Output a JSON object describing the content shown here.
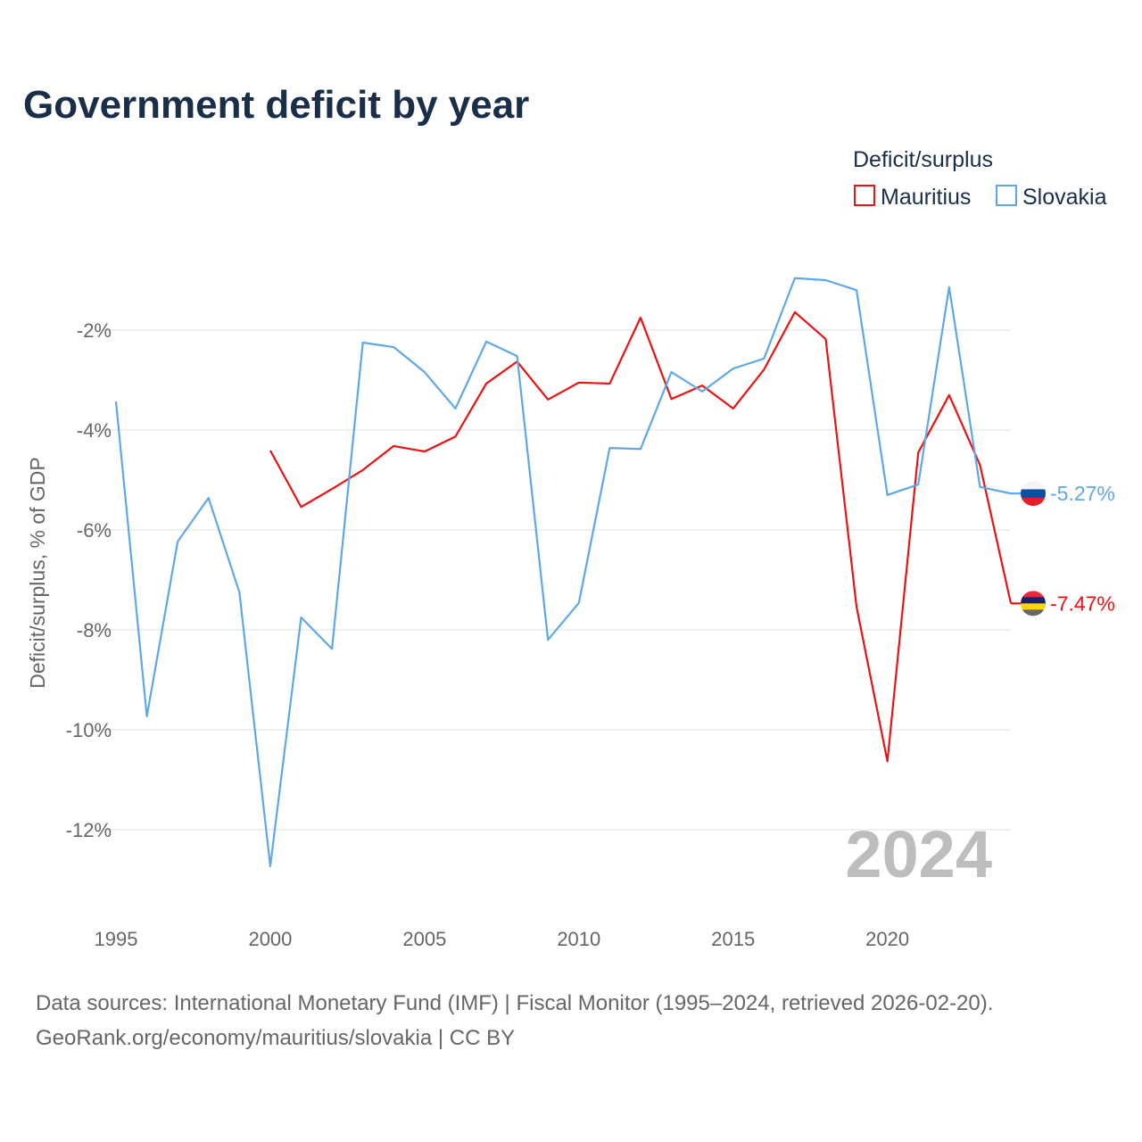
{
  "chart_data": {
    "type": "line",
    "title": "Government deficit by year",
    "ylabel": "Deficit/surplus, % of GDP",
    "xlabel": "",
    "legend_title": "Deficit/surplus",
    "legend_position": "top-right",
    "year_watermark": "2024",
    "x_ticks": [
      "1995",
      "2000",
      "2005",
      "2010",
      "2015",
      "2020"
    ],
    "x_tick_values": [
      1995,
      2000,
      2005,
      2010,
      2015,
      2020
    ],
    "y_ticks": [
      "-2%",
      "-4%",
      "-6%",
      "-8%",
      "-10%",
      "-12%"
    ],
    "y_tick_values": [
      -2,
      -4,
      -6,
      -8,
      -10,
      -12
    ],
    "xlim": [
      1995,
      2024
    ],
    "ylim": [
      -13.5,
      0
    ],
    "grid": true,
    "series": [
      {
        "name": "Mauritius",
        "color": "#ee1111",
        "end_label": "-7.47%",
        "x": [
          2000,
          2001,
          2002,
          2003,
          2004,
          2005,
          2006,
          2007,
          2008,
          2009,
          2010,
          2011,
          2012,
          2013,
          2014,
          2015,
          2016,
          2017,
          2018,
          2019,
          2020,
          2021,
          2022,
          2023,
          2024
        ],
        "values": [
          -4.41,
          -5.54,
          -5.18,
          -4.8,
          -4.32,
          -4.43,
          -4.13,
          -3.07,
          -2.63,
          -3.39,
          -3.05,
          -3.07,
          -1.75,
          -3.38,
          -3.11,
          -3.57,
          -2.79,
          -1.64,
          -2.18,
          -7.54,
          -10.63,
          -4.45,
          -3.3,
          -4.7,
          -7.47
        ]
      },
      {
        "name": "Slovakia",
        "color": "#5ea8e8",
        "end_label": "-5.27%",
        "x": [
          1995,
          1996,
          1997,
          1998,
          1999,
          2000,
          2001,
          2002,
          2003,
          2004,
          2005,
          2006,
          2007,
          2008,
          2009,
          2010,
          2011,
          2012,
          2013,
          2014,
          2015,
          2016,
          2017,
          2018,
          2019,
          2020,
          2021,
          2022,
          2023,
          2024
        ],
        "values": [
          -3.43,
          -9.73,
          -6.23,
          -5.36,
          -7.25,
          -12.73,
          -7.75,
          -8.38,
          -2.25,
          -2.34,
          -2.84,
          -3.57,
          -2.23,
          -2.52,
          -8.2,
          -7.46,
          -4.36,
          -4.38,
          -2.84,
          -3.23,
          -2.77,
          -2.57,
          -0.96,
          -1.0,
          -1.2,
          -5.3,
          -5.09,
          -1.14,
          -5.14,
          -5.27
        ]
      }
    ]
  },
  "footer": {
    "source": "Data sources: International Monetary Fund (IMF) | Fiscal Monitor (1995–2024, retrieved 2026-02-20).",
    "link": "GeoRank.org/economy/mauritius/slovakia | CC BY"
  }
}
